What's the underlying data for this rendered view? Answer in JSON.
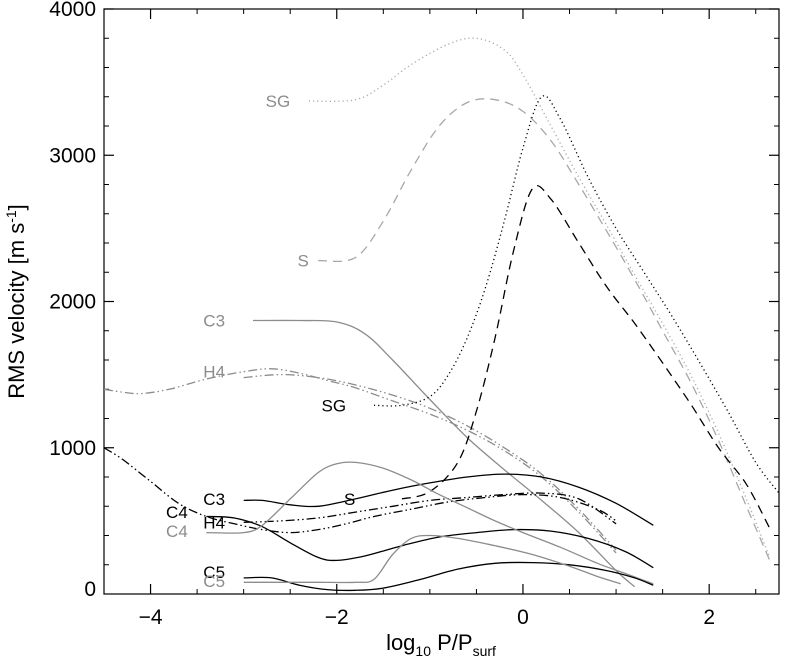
{
  "chart_data": {
    "type": "line",
    "xlabel": {
      "base": "log",
      "sub1": "10",
      "mid": " P/P",
      "sub2": "surf"
    },
    "ylabel": "RMS velocity [m s",
    "ylabel_sup": "-1",
    "ylabel_end": "]",
    "xlim": [
      -4.5,
      2.75
    ],
    "ylim": [
      0,
      4000
    ],
    "x_ticks": [
      -4,
      -2,
      0,
      2
    ],
    "x_tick_labels": [
      "−4",
      "−2",
      "0",
      "2"
    ],
    "y_ticks": [
      1000,
      2000,
      3000,
      4000
    ],
    "y_tick_labels": [
      "1000",
      "2000",
      "3000",
      "4000"
    ],
    "y_zero_label": "0",
    "colors": {
      "black": "#000000",
      "gray": "#8c8c8c",
      "light": "#a8a8a8"
    },
    "series": [
      {
        "label": "SG",
        "color": "light",
        "dash": "dotted",
        "x": [
          -2.3,
          -1.8,
          -1.5,
          -1.2,
          -0.8,
          -0.5,
          -0.2,
          0.0,
          0.3,
          0.6,
          0.9,
          1.2,
          1.5,
          1.8,
          2.1,
          2.4,
          2.65
        ],
        "y": [
          3370,
          3380,
          3480,
          3620,
          3760,
          3800,
          3720,
          3550,
          3200,
          2850,
          2520,
          2180,
          1850,
          1500,
          1100,
          650,
          250
        ]
      },
      {
        "label": "S",
        "color": "light",
        "dash": "dashed",
        "x": [
          -2.2,
          -1.8,
          -1.5,
          -1.2,
          -0.9,
          -0.6,
          -0.3,
          0.0,
          0.3,
          0.6,
          0.9,
          1.2,
          1.5,
          1.8,
          2.1,
          2.4,
          2.65
        ],
        "y": [
          2280,
          2300,
          2550,
          2900,
          3200,
          3360,
          3380,
          3300,
          3100,
          2800,
          2480,
          2150,
          1800,
          1450,
          1050,
          600,
          230
        ]
      },
      {
        "label": "C3",
        "color": "gray",
        "dash": "solid",
        "x": [
          -2.9,
          -2.4,
          -2.0,
          -1.7,
          -1.4,
          -1.0,
          -0.6,
          -0.2,
          0.2,
          0.6,
          1.0,
          1.2
        ],
        "y": [
          1870,
          1870,
          1860,
          1780,
          1600,
          1330,
          1070,
          850,
          640,
          420,
          160,
          50
        ]
      },
      {
        "label": "H4",
        "color": "gray",
        "dash": "dashdotdot",
        "x": [
          -4.5,
          -4.3,
          -4.1,
          -3.8,
          -3.4,
          -3.0,
          -2.7,
          -2.4,
          -2.1,
          -1.8,
          -1.4,
          -1.0,
          -0.6,
          -0.2,
          0.2,
          0.6,
          1.0
        ],
        "y": [
          1400,
          1380,
          1370,
          1400,
          1470,
          1520,
          1540,
          1510,
          1460,
          1410,
          1320,
          1230,
          1120,
          980,
          800,
          560,
          280
        ]
      },
      {
        "label": "",
        "color": "gray",
        "dash": "dashdotdot",
        "x": [
          -3.0,
          -2.6,
          -2.2,
          -1.8,
          -1.4,
          -1.0,
          -0.6,
          -0.2,
          0.2,
          0.6,
          1.0
        ],
        "y": [
          1480,
          1500,
          1480,
          1430,
          1360,
          1270,
          1150,
          1000,
          820,
          580,
          300
        ]
      },
      {
        "label": "SG",
        "color": "black",
        "dash": "dotted",
        "x": [
          -1.6,
          -1.3,
          -1.0,
          -0.8,
          -0.6,
          -0.4,
          -0.2,
          0.0,
          0.2,
          0.4,
          0.7,
          1.0,
          1.3,
          1.6,
          1.9,
          2.2,
          2.5,
          2.75
        ],
        "y": [
          1290,
          1290,
          1350,
          1500,
          1750,
          2100,
          2550,
          3050,
          3400,
          3250,
          2850,
          2500,
          2200,
          1900,
          1580,
          1250,
          900,
          690
        ]
      },
      {
        "label": "S",
        "color": "black",
        "dash": "dashed",
        "x": [
          -1.3,
          -1.0,
          -0.7,
          -0.5,
          -0.3,
          -0.1,
          0.1,
          0.3,
          0.6,
          0.9,
          1.2,
          1.5,
          1.8,
          2.1,
          2.4,
          2.65
        ],
        "y": [
          650,
          700,
          900,
          1250,
          1750,
          2350,
          2770,
          2700,
          2400,
          2100,
          1850,
          1580,
          1300,
          1000,
          750,
          450
        ]
      },
      {
        "label": "C3",
        "color": "black",
        "dash": "solid",
        "x": [
          -3.0,
          -2.8,
          -2.5,
          -2.2,
          -1.8,
          -1.4,
          -1.0,
          -0.6,
          -0.2,
          0.2,
          0.6,
          1.0,
          1.4
        ],
        "y": [
          640,
          640,
          610,
          600,
          650,
          710,
          760,
          800,
          820,
          800,
          730,
          620,
          470
        ]
      },
      {
        "label": "H4",
        "color": "black",
        "dash": "dashdotdot",
        "x": [
          -4.5,
          -4.3,
          -4.0,
          -3.7,
          -3.4,
          -3.1,
          -2.8,
          -2.5,
          -2.2,
          -1.9,
          -1.6,
          -1.2,
          -0.8,
          -0.4,
          0.0,
          0.4,
          0.8,
          1.0
        ],
        "y": [
          1000,
          920,
          770,
          620,
          530,
          480,
          440,
          420,
          440,
          480,
          530,
          580,
          630,
          660,
          680,
          660,
          580,
          500
        ]
      },
      {
        "label": "",
        "color": "black",
        "dash": "dashdotdot",
        "x": [
          -3.0,
          -2.6,
          -2.2,
          -1.8,
          -1.4,
          -1.0,
          -0.6,
          -0.2,
          0.2,
          0.6,
          1.0
        ],
        "y": [
          490,
          500,
          520,
          560,
          600,
          640,
          660,
          680,
          690,
          650,
          480
        ]
      },
      {
        "label": "C4",
        "color": "black",
        "dash": "solid",
        "x": [
          -3.4,
          -3.1,
          -2.8,
          -2.5,
          -2.2,
          -2.0,
          -1.7,
          -1.3,
          -0.9,
          -0.5,
          -0.1,
          0.3,
          0.7,
          1.1,
          1.4
        ],
        "y": [
          530,
          520,
          460,
          350,
          250,
          230,
          260,
          330,
          390,
          420,
          440,
          430,
          380,
          290,
          180
        ]
      },
      {
        "label": "C4",
        "color": "gray",
        "dash": "solid",
        "x": [
          -3.4,
          -3.0,
          -2.8,
          -2.5,
          -2.2,
          -2.0,
          -1.8,
          -1.5,
          -1.2,
          -0.9,
          -0.6,
          -0.3,
          0.0,
          0.4,
          0.8,
          1.1,
          1.4
        ],
        "y": [
          420,
          420,
          470,
          650,
          830,
          890,
          900,
          860,
          780,
          680,
          590,
          500,
          420,
          320,
          210,
          140,
          70
        ]
      },
      {
        "label": "C5",
        "color": "black",
        "dash": "solid",
        "x": [
          -3.0,
          -2.7,
          -2.4,
          -2.1,
          -1.8,
          -1.5,
          -1.1,
          -0.7,
          -0.3,
          0.1,
          0.5,
          0.9,
          1.2,
          1.4
        ],
        "y": [
          110,
          110,
          60,
          30,
          25,
          40,
          100,
          170,
          210,
          215,
          200,
          160,
          110,
          60
        ]
      },
      {
        "label": "C5",
        "color": "gray",
        "dash": "solid",
        "x": [
          -3.0,
          -2.6,
          -2.2,
          -1.8,
          -1.6,
          -1.4,
          -1.2,
          -1.0,
          -0.7,
          -0.3,
          0.1,
          0.5,
          0.8,
          1.05
        ],
        "y": [
          80,
          80,
          80,
          80,
          100,
          270,
          380,
          400,
          380,
          330,
          270,
          190,
          120,
          70
        ]
      }
    ],
    "annotations": [
      {
        "text": "SG",
        "color": "gray",
        "x": -2.5,
        "y": 3370
      },
      {
        "text": "S",
        "color": "gray",
        "x": -2.3,
        "y": 2280
      },
      {
        "text": "C3",
        "color": "gray",
        "x": -3.2,
        "y": 1870
      },
      {
        "text": "H4",
        "color": "gray",
        "x": -3.2,
        "y": 1520
      },
      {
        "text": "SG",
        "color": "black",
        "x": -1.9,
        "y": 1290
      },
      {
        "text": "C3",
        "color": "black",
        "x": -3.2,
        "y": 650
      },
      {
        "text": "S",
        "color": "black",
        "x": -1.8,
        "y": 650
      },
      {
        "text": "C4",
        "color": "black",
        "x": -3.6,
        "y": 560
      },
      {
        "text": "H4",
        "color": "black",
        "x": -3.2,
        "y": 490
      },
      {
        "text": "C4",
        "color": "gray",
        "x": -3.6,
        "y": 430
      },
      {
        "text": "C5",
        "color": "black",
        "x": -3.2,
        "y": 150
      },
      {
        "text": "C5",
        "color": "gray",
        "x": -3.2,
        "y": 90
      }
    ]
  }
}
